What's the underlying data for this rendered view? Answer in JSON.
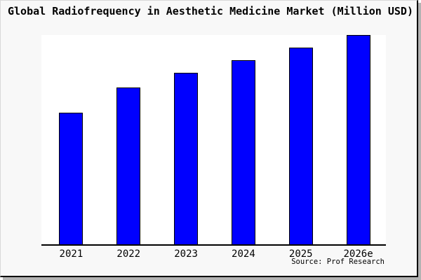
{
  "figure": {
    "title": "Global Radiofrequency in Aesthetic Medicine Market (Million USD)",
    "source": "Source: Prof Research"
  },
  "colors": {
    "bar_fill": "#0000ff",
    "bar_edge": "#000000",
    "figure_background": "#f8f8f8",
    "plot_background": "#ffffff",
    "axis_line": "#000000"
  },
  "chart_data": {
    "type": "bar",
    "title": "Global Radiofrequency in Aesthetic Medicine Market (Million USD)",
    "categories": [
      "2021",
      "2022",
      "2023",
      "2024",
      "2025",
      "2026e"
    ],
    "values": [
      63,
      75,
      82,
      88,
      94,
      100
    ],
    "value_note": "No y-axis or data labels shown in the chart; values are relative bar heights indexed to 2026e = 100.",
    "xlabel": "",
    "ylabel": "",
    "ylim": [
      0,
      100
    ],
    "grid": false,
    "legend": null,
    "source": "Source: Prof Research",
    "bar_color": "#0000ff",
    "bar_edge_color": "#000000"
  }
}
